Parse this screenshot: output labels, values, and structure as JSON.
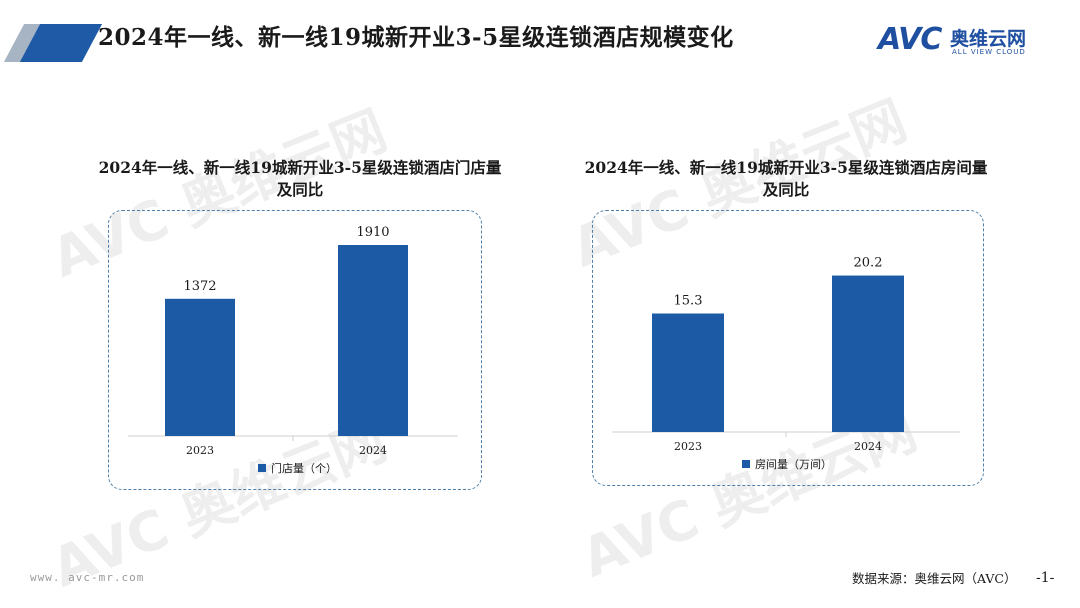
{
  "header": {
    "title": "2024年一线、新一线19城新开业3-5星级连锁酒店规模变化",
    "brand_logo": "AVC",
    "brand_cn": "奥维云网",
    "brand_en": "ALL VIEW CLOUD",
    "brand_color": "#1f4fa0"
  },
  "watermark_text": "AVC 奥维云网",
  "chart_data": [
    {
      "type": "bar",
      "title": "2024年一线、新一线19城新开业3-5星级连锁酒店门店量及同比",
      "title_lines": [
        "2024年一线、新一线19城新开业3-5星级连锁酒店门店量",
        "及同比"
      ],
      "categories": [
        "2023",
        "2024"
      ],
      "series": [
        {
          "name": "门店量（个）",
          "values": [
            1372,
            1910
          ],
          "color": "#1c5aa6"
        }
      ],
      "value_labels": [
        "1372",
        "1910"
      ],
      "ylim": [
        0,
        2100
      ],
      "grid": false,
      "legend": "bottom-left"
    },
    {
      "type": "bar",
      "title": "2024年一线、新一线19城新开业3-5星级连锁酒店房间量及同比",
      "title_lines": [
        "2024年一线、新一线19城新开业3-5星级连锁酒店房间量",
        "及同比"
      ],
      "categories": [
        "2023",
        "2024"
      ],
      "series": [
        {
          "name": "房间量（万间）",
          "values": [
            15.3,
            20.2
          ],
          "color": "#1c5aa6"
        }
      ],
      "value_labels": [
        "15.3",
        "20.2"
      ],
      "ylim": [
        0,
        23.5
      ],
      "grid": false,
      "legend": "bottom-left"
    }
  ],
  "footer": {
    "url": "www. avc-mr.com",
    "source": "数据来源：奥维云网（AVC）",
    "page_number": "-1-"
  }
}
